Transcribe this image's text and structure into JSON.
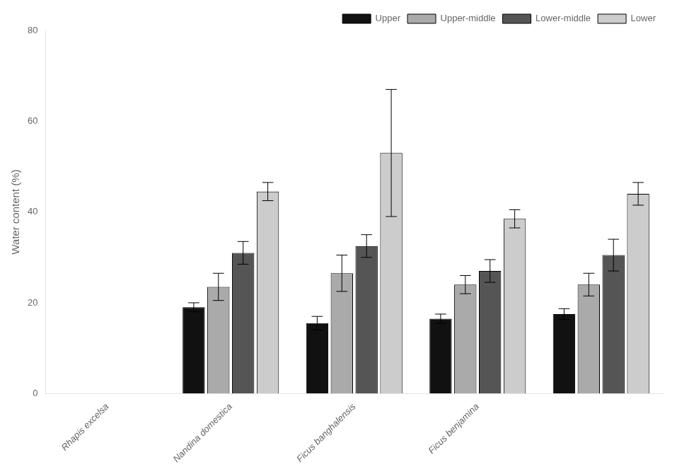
{
  "chart_data": {
    "type": "bar",
    "categories": [
      "Rhapis excelsa",
      "Nandina domestica",
      "Ficus banghalensis",
      "Ficus benjamina",
      null
    ],
    "series": [
      {
        "name": "Upper",
        "color": "#111111",
        "values": [
          null,
          19.0,
          15.5,
          16.5,
          17.5
        ],
        "errors": [
          null,
          1.0,
          1.5,
          1.0,
          1.2
        ]
      },
      {
        "name": "Upper-middle",
        "color": "#aaaaaa",
        "values": [
          null,
          23.5,
          26.5,
          24.0,
          24.0
        ],
        "errors": [
          null,
          3.0,
          4.0,
          2.0,
          2.5
        ]
      },
      {
        "name": "Lower-middle",
        "color": "#555555",
        "values": [
          null,
          31.0,
          32.5,
          27.0,
          30.5
        ],
        "errors": [
          null,
          2.5,
          2.5,
          2.5,
          3.5
        ]
      },
      {
        "name": "Lower",
        "color": "#cccccc",
        "values": [
          null,
          44.5,
          53.0,
          38.5,
          44.0
        ],
        "errors": [
          null,
          2.0,
          14.0,
          2.0,
          2.5
        ]
      }
    ],
    "ylabel": "Water content (%)",
    "ylim": [
      0,
      80
    ],
    "yticks": [
      0,
      20,
      40,
      60,
      80
    ],
    "grid": false,
    "legend": "upper right"
  }
}
